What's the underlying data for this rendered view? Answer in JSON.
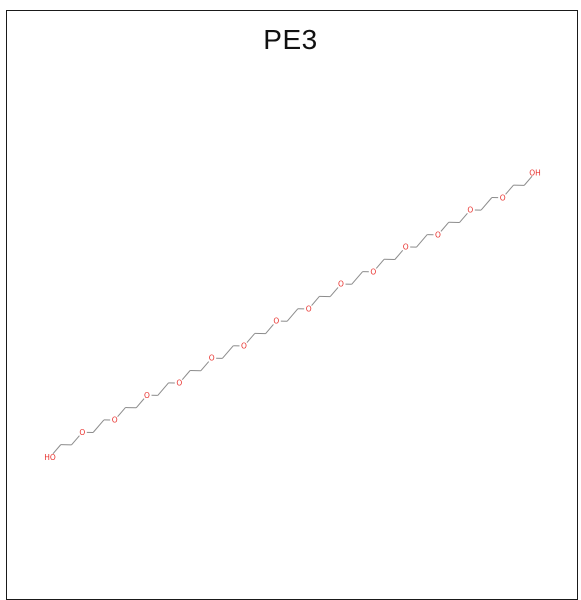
{
  "title": "PE3",
  "molecule": {
    "terminal_labels": [
      "HO",
      "OH"
    ],
    "ether_label": "O",
    "ether_oxygen_count": 14,
    "colors": {
      "bond": "#8c8c8c",
      "oxygen": "#e8302c",
      "frame": "#1a1a1a",
      "title": "#111111"
    }
  }
}
